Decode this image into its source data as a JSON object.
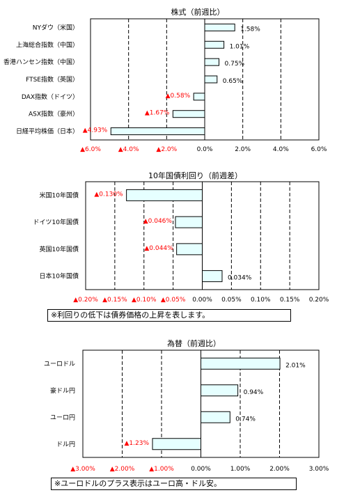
{
  "colors": {
    "bar_fill": "#e6ffff",
    "bar_stroke": "#000000",
    "negative_text": "#ff0000",
    "positive_text": "#000000"
  },
  "chart_data": [
    {
      "type": "bar",
      "orientation": "horizontal",
      "title": "株式（前週比）",
      "categories": [
        "NYダウ（米国）",
        "上海総合指数（中国）",
        "香港ハンセン指数（中国）",
        "FTSE指数（英国）",
        "DAX指数（ドイツ）",
        "ASX指数（豪州）",
        "日経平均株価（日本）"
      ],
      "values": [
        1.58,
        1.01,
        0.75,
        0.65,
        -0.58,
        -1.67,
        -4.93
      ],
      "value_labels": [
        "1.58%",
        "1.01%",
        "0.75%",
        "0.65%",
        "▲0.58%",
        "▲1.67%",
        "▲4.93%"
      ],
      "xlim": [
        -6,
        6
      ],
      "ticks": [
        -6,
        -4,
        -2,
        0,
        2,
        4,
        6
      ],
      "tick_labels": [
        "▲6.0%",
        "▲4.0%",
        "▲2.0%",
        "0.0%",
        "2.0%",
        "4.0%",
        "6.0%"
      ]
    },
    {
      "type": "bar",
      "orientation": "horizontal",
      "title": "10年国債利回り（前週差）",
      "categories": [
        "米国10年国債",
        "ドイツ10年国債",
        "英国10年国債",
        "日本10年国債"
      ],
      "values": [
        -0.13,
        -0.046,
        -0.044,
        0.034
      ],
      "value_labels": [
        "▲0.130%",
        "▲0.046%",
        "▲0.044%",
        "0.034%"
      ],
      "xlim": [
        -0.2,
        0.2
      ],
      "ticks": [
        -0.2,
        -0.15,
        -0.1,
        -0.05,
        0,
        0.05,
        0.1,
        0.15,
        0.2
      ],
      "tick_labels": [
        "▲0.20%",
        "▲0.15%",
        "▲0.10%",
        "▲0.05%",
        "0.00%",
        "0.05%",
        "0.10%",
        "0.15%",
        "0.20%"
      ]
    },
    {
      "type": "bar",
      "orientation": "horizontal",
      "title": "為替（前週比）",
      "categories": [
        "ユーロドル",
        "豪ドル円",
        "ユーロ円",
        "ドル円"
      ],
      "values": [
        2.01,
        0.94,
        0.74,
        -1.23
      ],
      "value_labels": [
        "2.01%",
        "0.94%",
        "0.74%",
        "▲1.23%"
      ],
      "xlim": [
        -3,
        3
      ],
      "ticks": [
        -3,
        -2,
        -1,
        0,
        1,
        2,
        3
      ],
      "tick_labels": [
        "▲3.00%",
        "▲2.00%",
        "▲1.00%",
        "0.00%",
        "1.00%",
        "2.00%",
        "3.00%"
      ]
    }
  ],
  "notes": {
    "bond_note": "※利回りの低下は債券価格の上昇を表します。",
    "fx_note": "※ユーロドルのプラス表示はユーロ高・ドル安。"
  }
}
